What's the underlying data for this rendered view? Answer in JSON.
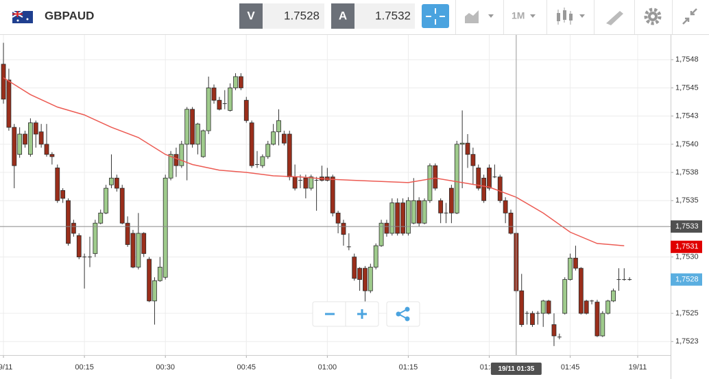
{
  "header": {
    "symbol": "GBPAUD",
    "bid_label": "V",
    "bid": 1.7528,
    "ask_label": "A",
    "ask": 1.7532,
    "timeframe": "1M"
  },
  "chart_data": {
    "type": "candlestick",
    "x": [
      0,
      1,
      2,
      3,
      4,
      5,
      6,
      7,
      8,
      9,
      10,
      11,
      12,
      13,
      14,
      15,
      16,
      17,
      18,
      19,
      20,
      21,
      22,
      23,
      24,
      25,
      26,
      27,
      28,
      29,
      30,
      31,
      32,
      33,
      34,
      35,
      36,
      37,
      38,
      39,
      40,
      41,
      42,
      43,
      44,
      45,
      46,
      47,
      48,
      49,
      50,
      51,
      52,
      53,
      54,
      55,
      56,
      57,
      58,
      59,
      60,
      61,
      62,
      63,
      64,
      65,
      66,
      67,
      68,
      69,
      70,
      71,
      72,
      73,
      74,
      75,
      76,
      77,
      78,
      79,
      80,
      81,
      82,
      83,
      84,
      85,
      86,
      87,
      88,
      89,
      90,
      91,
      92,
      93,
      94,
      95,
      96,
      97,
      98,
      99,
      100,
      101,
      102,
      103,
      104,
      105,
      106,
      107,
      108,
      109,
      110,
      111,
      112,
      113,
      114,
      115,
      116
    ],
    "open": [
      1.75471,
      1.75457,
      1.75415,
      1.75391,
      1.75409,
      1.75391,
      1.75419,
      1.75411,
      1.754,
      1.75391,
      1.75379,
      1.75359,
      1.7535,
      1.7533,
      1.75319,
      1.753,
      1.753,
      1.75303,
      1.7533,
      1.75339,
      1.75364,
      1.7537,
      1.75361,
      1.7533,
      1.75321,
      1.75291,
      1.75321,
      1.75298,
      1.75261,
      1.75279,
      1.75282,
      1.7537,
      1.75391,
      1.75381,
      1.754,
      1.75431,
      1.754,
      1.75389,
      1.75412,
      1.7545,
      1.75439,
      1.75436,
      1.7543,
      1.7545,
      1.7546,
      1.75439,
      1.75419,
      1.75382,
      1.75381,
      1.75389,
      1.754,
      1.75411,
      1.75409,
      1.75409,
      1.75371,
      1.75368,
      1.7537,
      1.75361,
      1.75368,
      1.75371,
      1.75371,
      1.75371,
      1.75339,
      1.7533,
      1.75309,
      1.753,
      1.7529,
      1.7529,
      1.7527,
      1.75291,
      1.7531,
      1.7533,
      1.75321,
      1.75348,
      1.75348,
      1.75321,
      1.7533,
      1.7535,
      1.7533,
      1.7535,
      1.75381,
      1.7535,
      1.75339,
      1.75361,
      1.75339,
      1.754,
      1.75401,
      1.75391,
      1.75379,
      1.7537,
      1.75379,
      1.75371,
      1.75371,
      1.7535,
      1.75339,
      1.75321,
      1.7527,
      1.7525,
      1.7525,
      1.7525,
      1.7525,
      1.75261,
      1.7524,
      1.75229,
      1.7525,
      1.7528,
      1.75299,
      1.7529,
      1.75261,
      1.75261,
      1.7526,
      1.7523,
      1.7525,
      1.75261,
      1.7528,
      1.7528,
      1.7528
    ],
    "high": [
      1.7549,
      1.75467,
      1.75418,
      1.75415,
      1.75412,
      1.75423,
      1.75421,
      1.75418,
      1.75418,
      1.75393,
      1.75382,
      1.75361,
      1.75352,
      1.75333,
      1.75321,
      1.75303,
      1.75318,
      1.75333,
      1.75342,
      1.75364,
      1.75391,
      1.75373,
      1.75364,
      1.75336,
      1.75324,
      1.75339,
      1.75322,
      1.753,
      1.75282,
      1.753,
      1.75373,
      1.75394,
      1.75397,
      1.75403,
      1.75433,
      1.75433,
      1.75419,
      1.75413,
      1.7546,
      1.75453,
      1.75442,
      1.75448,
      1.75454,
      1.75463,
      1.75463,
      1.75442,
      1.75421,
      1.75394,
      1.75391,
      1.75403,
      1.75418,
      1.75431,
      1.75412,
      1.75412,
      1.75382,
      1.75373,
      1.75373,
      1.75373,
      1.75371,
      1.75381,
      1.75379,
      1.75373,
      1.75341,
      1.75333,
      1.75321,
      1.75303,
      1.75291,
      1.75292,
      1.75294,
      1.75312,
      1.75333,
      1.75333,
      1.75352,
      1.75352,
      1.75352,
      1.75353,
      1.7537,
      1.75353,
      1.75352,
      1.75383,
      1.75383,
      1.75352,
      1.75348,
      1.75364,
      1.75403,
      1.7543,
      1.75409,
      1.75397,
      1.75382,
      1.75373,
      1.75382,
      1.75382,
      1.75373,
      1.75353,
      1.75342,
      1.75322,
      1.75285,
      1.75252,
      1.75252,
      1.75252,
      1.75262,
      1.75262,
      1.7525,
      1.75232,
      1.75282,
      1.75303,
      1.7531,
      1.75291,
      1.75262,
      1.75262,
      1.75262,
      1.75252,
      1.75262,
      1.75272,
      1.7529,
      1.7529,
      1.75282
    ],
    "low": [
      1.75436,
      1.75412,
      1.75361,
      1.75388,
      1.75397,
      1.75389,
      1.75397,
      1.75397,
      1.75389,
      1.75382,
      1.75348,
      1.75348,
      1.7531,
      1.75318,
      1.75298,
      1.75272,
      1.75291,
      1.753,
      1.75329,
      1.75338,
      1.75361,
      1.75358,
      1.75329,
      1.75309,
      1.7529,
      1.75289,
      1.753,
      1.7526,
      1.7524,
      1.75278,
      1.7528,
      1.75368,
      1.75371,
      1.75379,
      1.75368,
      1.75397,
      1.75391,
      1.75388,
      1.75409,
      1.75436,
      1.7543,
      1.75431,
      1.75429,
      1.75448,
      1.75448,
      1.75419,
      1.75379,
      1.75379,
      1.75379,
      1.75387,
      1.75399,
      1.75399,
      1.75399,
      1.75368,
      1.75359,
      1.75361,
      1.75352,
      1.75359,
      1.75341,
      1.75367,
      1.75367,
      1.75336,
      1.75321,
      1.7531,
      1.75306,
      1.75279,
      1.7527,
      1.7526,
      1.75268,
      1.75289,
      1.75309,
      1.75318,
      1.75319,
      1.75319,
      1.75319,
      1.75319,
      1.75329,
      1.75327,
      1.75329,
      1.75348,
      1.75359,
      1.7533,
      1.7533,
      1.7533,
      1.75338,
      1.75361,
      1.75379,
      1.75364,
      1.75359,
      1.75348,
      1.75359,
      1.7537,
      1.75348,
      1.7533,
      1.7532,
      1.75268,
      1.75238,
      1.7524,
      1.75238,
      1.7524,
      1.75238,
      1.75249,
      1.75221,
      1.75227,
      1.75249,
      1.75279,
      1.75288,
      1.75249,
      1.75249,
      1.75258,
      1.75229,
      1.75229,
      1.75249,
      1.7526,
      1.7527,
      1.75279,
      1.75279
    ],
    "close": [
      1.7544,
      1.75415,
      1.75381,
      1.75409,
      1.754,
      1.75419,
      1.75409,
      1.754,
      1.75391,
      1.75389,
      1.7535,
      1.75352,
      1.75312,
      1.75321,
      1.753,
      1.753,
      1.753,
      1.7533,
      1.75339,
      1.75361,
      1.7537,
      1.75361,
      1.7533,
      1.75311,
      1.75291,
      1.75321,
      1.75303,
      1.75261,
      1.75279,
      1.75291,
      1.7537,
      1.75391,
      1.75381,
      1.754,
      1.75431,
      1.754,
      1.75418,
      1.75412,
      1.7545,
      1.75439,
      1.75431,
      1.75436,
      1.7545,
      1.7546,
      1.7545,
      1.75421,
      1.75381,
      1.75382,
      1.75389,
      1.754,
      1.75411,
      1.75421,
      1.75401,
      1.75371,
      1.75361,
      1.75368,
      1.75361,
      1.75371,
      1.75368,
      1.75368,
      1.75368,
      1.75339,
      1.7533,
      1.7532,
      1.75309,
      1.75281,
      1.7528,
      1.7527,
      1.75291,
      1.7531,
      1.7533,
      1.75321,
      1.75348,
      1.75321,
      1.75321,
      1.7535,
      1.7535,
      1.7533,
      1.7535,
      1.75381,
      1.75361,
      1.75339,
      1.75339,
      1.75339,
      1.754,
      1.75401,
      1.75391,
      1.75381,
      1.75361,
      1.7535,
      1.75361,
      1.75371,
      1.7535,
      1.75339,
      1.75321,
      1.7527,
      1.7524,
      1.7525,
      1.7524,
      1.7525,
      1.75261,
      1.7525,
      1.7523,
      1.75229,
      1.7528,
      1.75299,
      1.7529,
      1.7525,
      1.7525,
      1.75261,
      1.7523,
      1.7525,
      1.75261,
      1.7527,
      1.7528,
      1.7528,
      1.7528
    ],
    "up_color": "#9fcb8c",
    "down_color": "#9a2e1b",
    "doji_color": "#333333",
    "ma": {
      "color": "#ec5a52",
      "x": [
        0,
        5,
        10,
        15,
        20,
        25,
        30,
        35,
        40,
        45,
        50,
        55,
        60,
        65,
        70,
        75,
        80,
        85,
        90,
        95,
        100,
        105,
        110,
        115
      ],
      "values": [
        1.75459,
        1.75444,
        1.75433,
        1.75426,
        1.75415,
        1.75406,
        1.75391,
        1.75382,
        1.75377,
        1.75375,
        1.75372,
        1.75371,
        1.75369,
        1.75368,
        1.75367,
        1.75366,
        1.7537,
        1.75366,
        1.75362,
        1.75353,
        1.75339,
        1.75322,
        1.75312,
        1.7531
      ]
    },
    "xlim": [
      -0.64,
      123.6
    ],
    "xticks": [
      {
        "value": 0,
        "label": "19/11"
      },
      {
        "value": 15,
        "label": "00:15"
      },
      {
        "value": 30,
        "label": "00:30"
      },
      {
        "value": 45,
        "label": "00:45"
      },
      {
        "value": 60,
        "label": "01:00"
      },
      {
        "value": 75,
        "label": "01:15"
      },
      {
        "value": 90,
        "label": "01:30"
      },
      {
        "value": 105,
        "label": "01:45"
      },
      {
        "value": 117.5,
        "label": "19/11"
      }
    ],
    "ylim": [
      1.75213,
      1.75497
    ],
    "yticks": [
      {
        "value": 1.75475,
        "label": "1,7548"
      },
      {
        "value": 1.7545,
        "label": "1,7545"
      },
      {
        "value": 1.75425,
        "label": "1,7543"
      },
      {
        "value": 1.754,
        "label": "1,7540"
      },
      {
        "value": 1.75375,
        "label": "1,7538"
      },
      {
        "value": 1.7535,
        "label": "1,7535"
      },
      {
        "value": 1.753,
        "label": "1,7530"
      },
      {
        "value": 1.7525,
        "label": "1,7525"
      },
      {
        "value": 1.75225,
        "label": "1,7523"
      }
    ],
    "grid": true,
    "crosshair": {
      "x": 95,
      "x_label": "19/11 01:35",
      "y": 1.75327,
      "y_label": "1,7533"
    },
    "price_labels": [
      {
        "value": 1.75309,
        "label": "1,7531",
        "color": "#e00000"
      },
      {
        "value": 1.7528,
        "label": "1,7528",
        "color": "#5aaee0"
      }
    ]
  }
}
